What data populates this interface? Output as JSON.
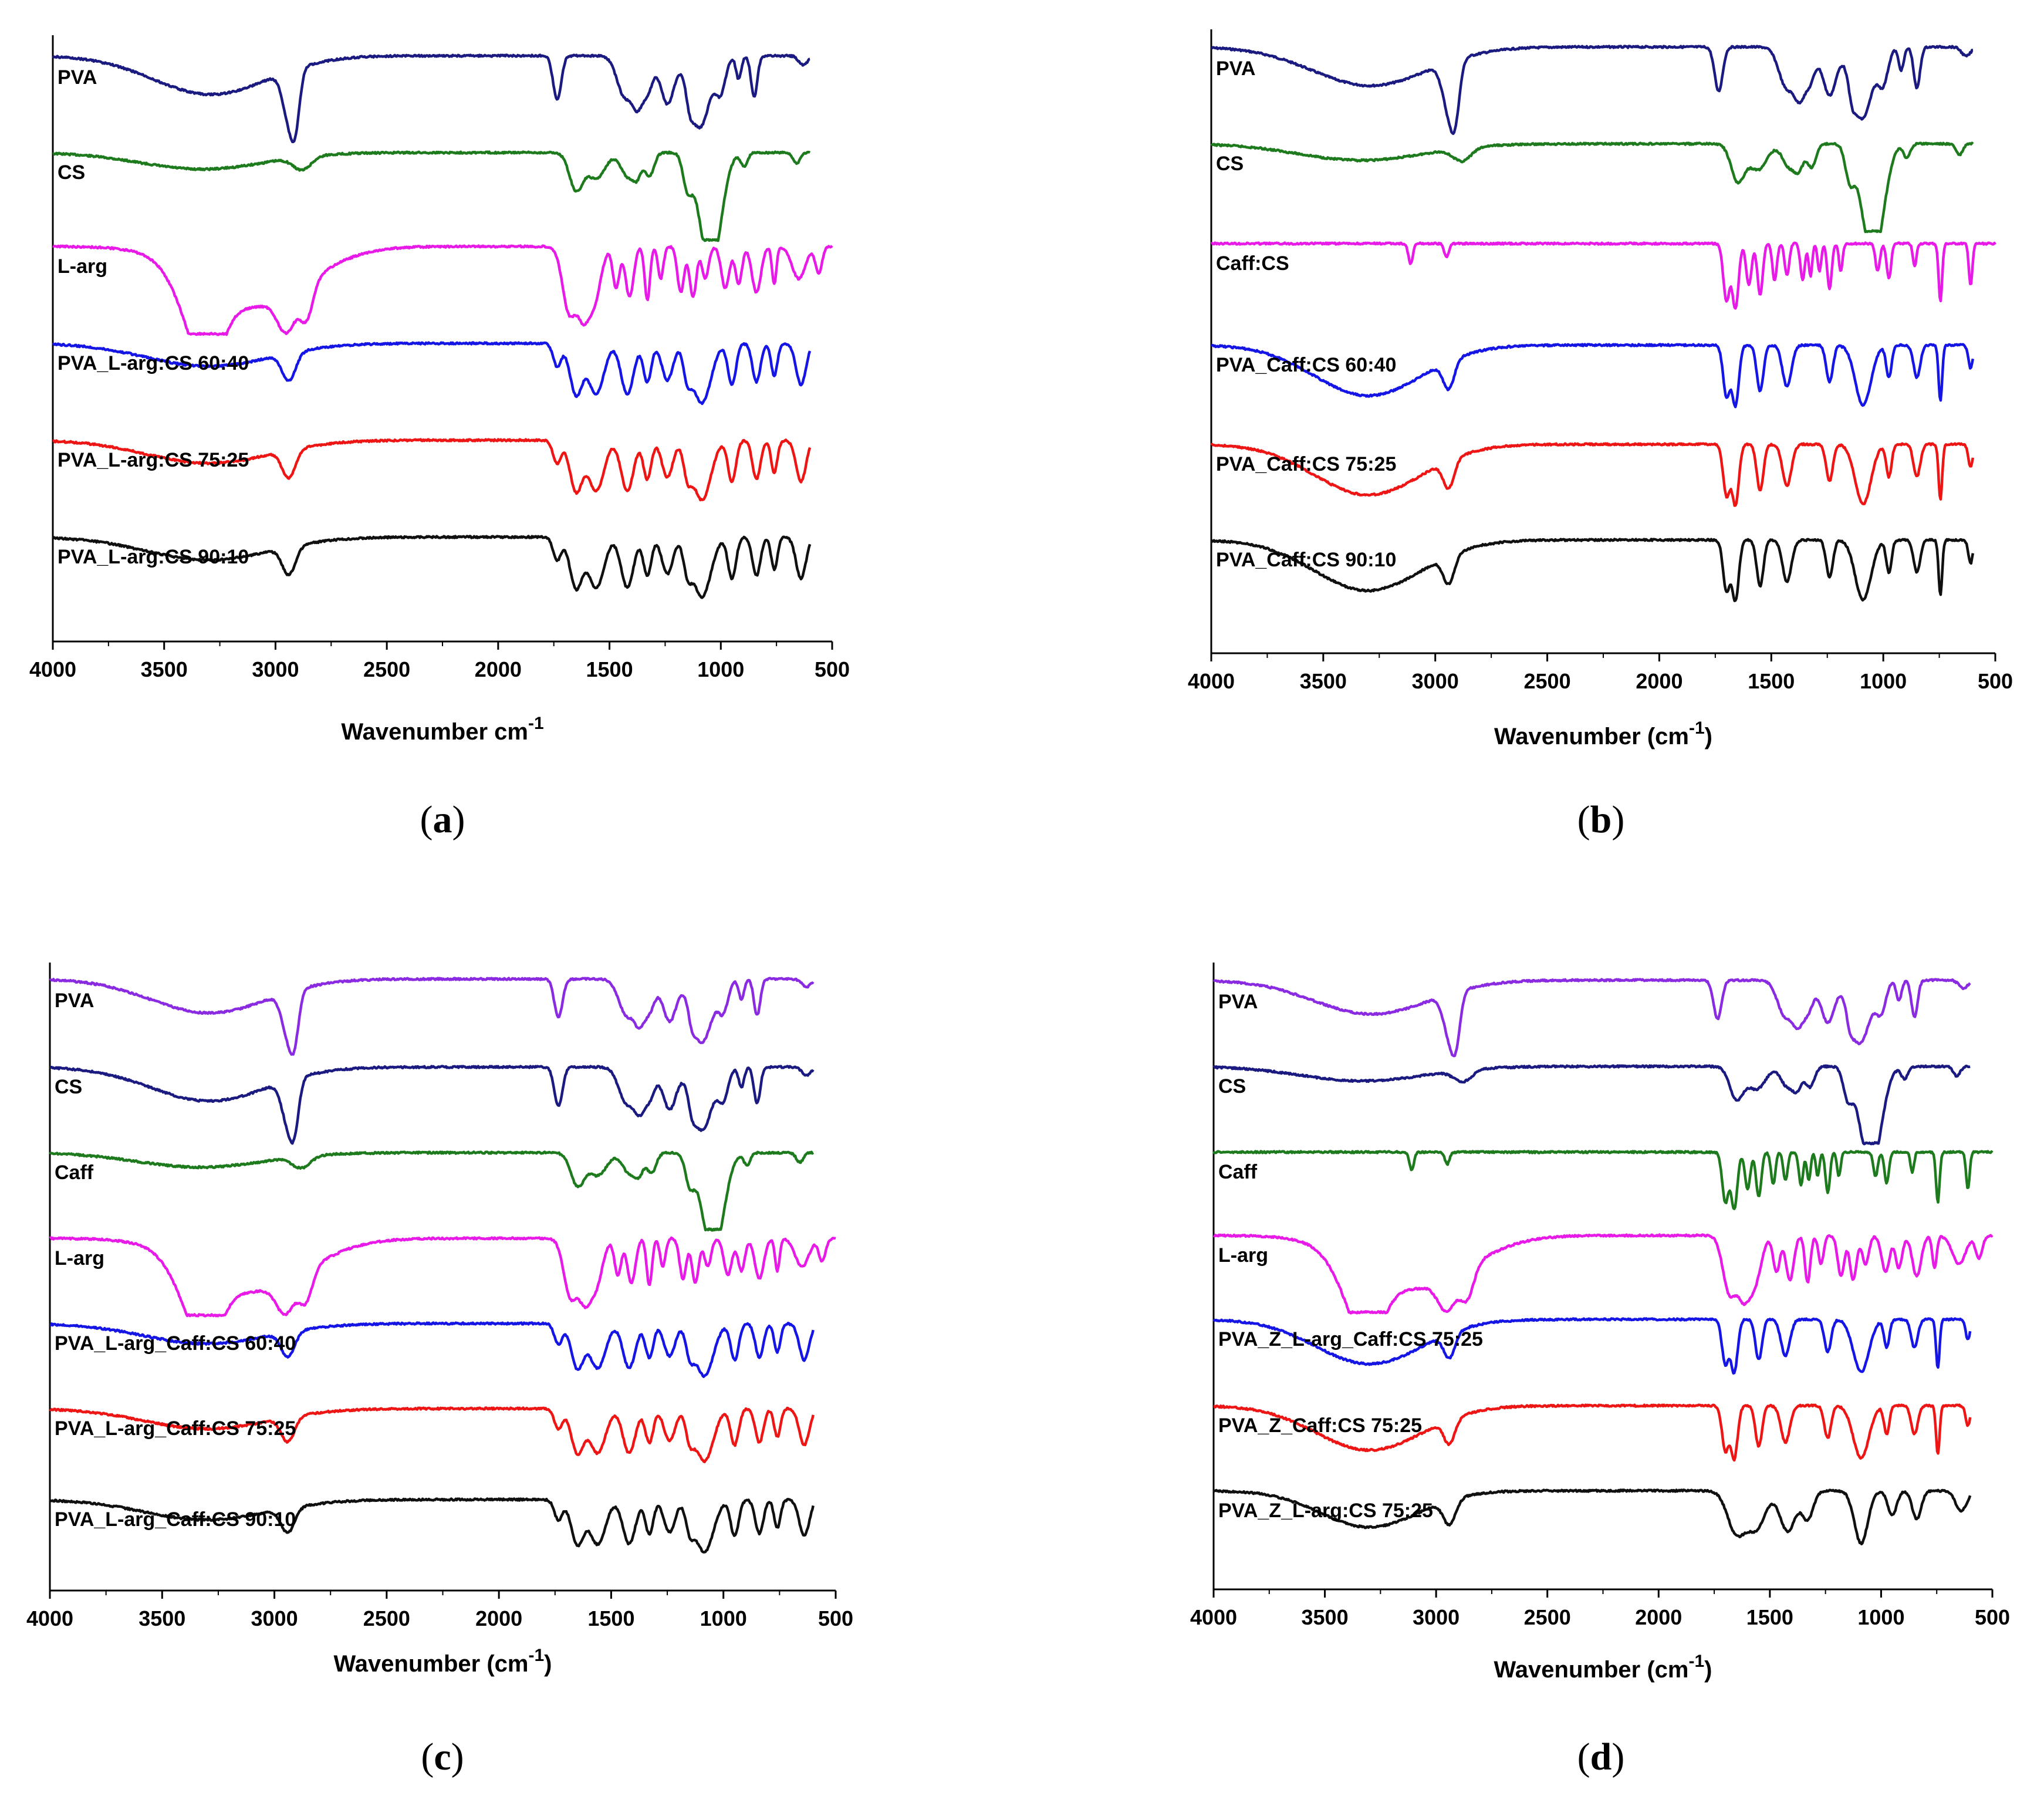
{
  "chart_data": [
    {
      "type": "line",
      "panel_label": "a",
      "xlabel": "Wavenumber cm",
      "xlabel_sup": "-1",
      "xlabel_tail": "",
      "xlim": [
        4000,
        500
      ],
      "x_ticks": [
        4000,
        3500,
        3000,
        2500,
        2000,
        1500,
        1000,
        500
      ],
      "y_ticks": [],
      "series": [
        {
          "name": "PVA",
          "color": "#1a1a80",
          "kind": "PVA",
          "start": 4000,
          "end": 600
        },
        {
          "name": "CS",
          "color": "#1d7a1d",
          "kind": "CS",
          "start": 4000,
          "end": 600
        },
        {
          "name": "L-arg",
          "color": "#e81ae8",
          "kind": "LARG",
          "start": 4000,
          "end": 500
        },
        {
          "name": "PVA_L-arg:CS 60:40",
          "color": "#1515e6",
          "kind": "BLEND",
          "start": 4000,
          "end": 600
        },
        {
          "name": "PVA_L-arg:CS 75:25",
          "color": "#ee1515",
          "kind": "BLEND",
          "start": 4000,
          "end": 600
        },
        {
          "name": "PVA_L-arg:CS 90:10",
          "color": "#101010",
          "kind": "BLEND",
          "start": 4000,
          "end": 600
        }
      ]
    },
    {
      "type": "line",
      "panel_label": "b",
      "xlabel": "Wavenumber (cm",
      "xlabel_sup": "-1",
      "xlabel_tail": ")",
      "xlim": [
        4000,
        500
      ],
      "x_ticks": [
        4000,
        3500,
        3000,
        2500,
        2000,
        1500,
        1000,
        500
      ],
      "y_ticks": [],
      "series": [
        {
          "name": "PVA",
          "color": "#1a1a80",
          "kind": "PVA",
          "start": 4000,
          "end": 600
        },
        {
          "name": "CS",
          "color": "#1d7a1d",
          "kind": "CS",
          "start": 4000,
          "end": 600
        },
        {
          "name": "Caff:CS",
          "color": "#e81ae8",
          "kind": "CAFF",
          "start": 4000,
          "end": 500
        },
        {
          "name": "PVA_Caff:CS 60:40",
          "color": "#1515e6",
          "kind": "CAFFBLEND",
          "start": 4000,
          "end": 600
        },
        {
          "name": "PVA_Caff:CS 75:25",
          "color": "#ee1515",
          "kind": "CAFFBLEND",
          "start": 4000,
          "end": 600
        },
        {
          "name": "PVA_Caff:CS 90:10",
          "color": "#101010",
          "kind": "CAFFBLEND",
          "start": 4000,
          "end": 600
        }
      ]
    },
    {
      "type": "line",
      "panel_label": "c",
      "xlabel": "Wavenumber (cm",
      "xlabel_sup": "-1",
      "xlabel_tail": ")",
      "xlim": [
        4000,
        500
      ],
      "x_ticks": [
        4000,
        3500,
        3000,
        2500,
        2000,
        1500,
        1000,
        500
      ],
      "y_ticks": [],
      "series": [
        {
          "name": "PVA",
          "color": "#8a2be2",
          "kind": "PVA",
          "start": 4000,
          "end": 600
        },
        {
          "name": "CS",
          "color": "#1a1a80",
          "kind": "PVA",
          "start": 4000,
          "end": 600
        },
        {
          "name": "Caff",
          "color": "#1d7a1d",
          "kind": "CS",
          "start": 4000,
          "end": 600
        },
        {
          "name": "L-arg",
          "color": "#e81ae8",
          "kind": "LARG",
          "start": 4000,
          "end": 500
        },
        {
          "name": "PVA_L-arg_Caff:CS 60:40",
          "color": "#1515e6",
          "kind": "BLEND",
          "start": 4000,
          "end": 600
        },
        {
          "name": "PVA_L-arg_Caff:CS 75:25",
          "color": "#ee1515",
          "kind": "BLEND",
          "start": 4000,
          "end": 600
        },
        {
          "name": "PVA_L-arg_Caff:CS 90:10",
          "color": "#101010",
          "kind": "BLEND",
          "start": 4000,
          "end": 600
        }
      ]
    },
    {
      "type": "line",
      "panel_label": "d",
      "xlabel": "Wavenumber (cm",
      "xlabel_sup": "-1",
      "xlabel_tail": ")",
      "xlim": [
        4000,
        500
      ],
      "x_ticks": [
        4000,
        3500,
        3000,
        2500,
        2000,
        1500,
        1000,
        500
      ],
      "y_ticks": [],
      "series": [
        {
          "name": "PVA",
          "color": "#8a2be2",
          "kind": "PVA",
          "start": 4000,
          "end": 600
        },
        {
          "name": "CS",
          "color": "#1a1a80",
          "kind": "CS",
          "start": 4000,
          "end": 600
        },
        {
          "name": "Caff",
          "color": "#1d7a1d",
          "kind": "CAFF",
          "start": 4000,
          "end": 500
        },
        {
          "name": "L-arg",
          "color": "#e81ae8",
          "kind": "LARG",
          "start": 4000,
          "end": 500
        },
        {
          "name": "PVA_Z_L-arg_Caff:CS 75:25",
          "color": "#1515e6",
          "kind": "CAFFBLEND",
          "start": 4000,
          "end": 600
        },
        {
          "name": "PVA_Z_Caff:CS 75:25",
          "color": "#ee1515",
          "kind": "CAFFBLEND",
          "start": 4000,
          "end": 600
        },
        {
          "name": "PVA_Z_L-arg:CS 75:25",
          "color": "#101010",
          "kind": "BROAD",
          "start": 4000,
          "end": 600
        }
      ]
    }
  ]
}
